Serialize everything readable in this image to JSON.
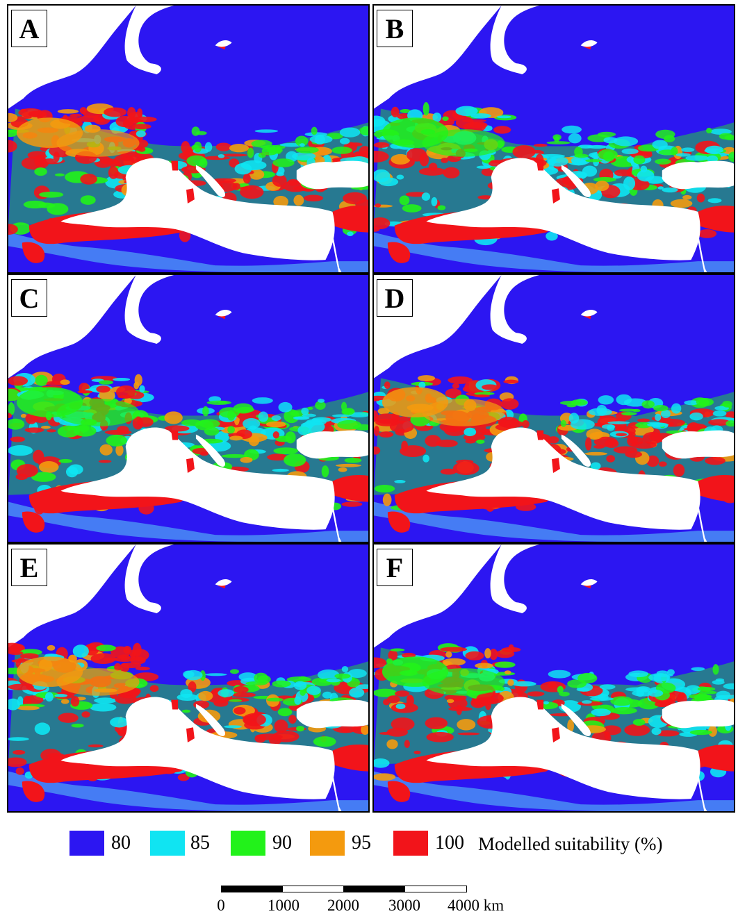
{
  "panels": [
    {
      "label": "A",
      "variant": 0
    },
    {
      "label": "B",
      "variant": 1
    },
    {
      "label": "C",
      "variant": 2
    },
    {
      "label": "D",
      "variant": 3
    },
    {
      "label": "E",
      "variant": 4
    },
    {
      "label": "F",
      "variant": 5
    }
  ],
  "colors": {
    "s80": "#2c16f2",
    "s85": "#10e4f2",
    "s90": "#22f21a",
    "s95": "#f49a0e",
    "s100": "#f2141a",
    "sea": "#ffffff",
    "shallow": "#4a8ef5"
  },
  "legend": {
    "items": [
      {
        "value": "80",
        "color": "#2c16f2"
      },
      {
        "value": "85",
        "color": "#10e4f2"
      },
      {
        "value": "90",
        "color": "#22f21a"
      },
      {
        "value": "95",
        "color": "#f49a0e"
      },
      {
        "value": "100",
        "color": "#f2141a"
      }
    ],
    "title": "Modelled suitability (%)"
  },
  "scale_bar": {
    "ticks": [
      "0",
      "1000",
      "2000",
      "3000",
      "4000 km"
    ]
  }
}
